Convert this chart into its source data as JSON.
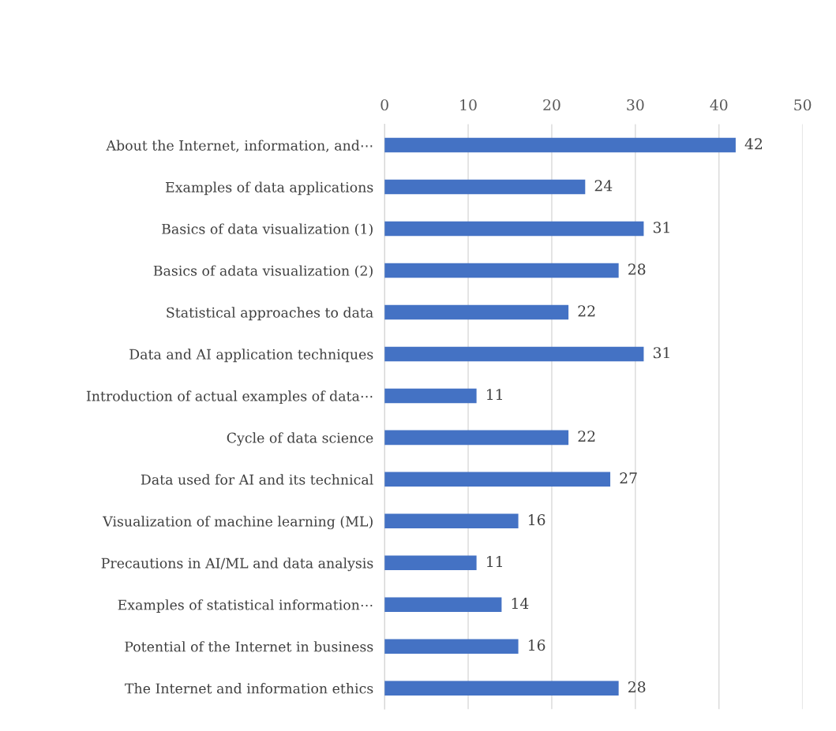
{
  "chart_data": {
    "type": "bar",
    "orientation": "horizontal",
    "categories": [
      "About the Internet, information, and⋯",
      "Examples of data applications",
      "Basics of data visualization (1)",
      "Basics of adata visualization (2)",
      "Statistical approaches to data",
      "Data and AI application techniques",
      "Introduction of actual examples of data⋯",
      "Cycle of data science",
      "Data used for AI and its technical",
      "Visualization of machine learning (ML)",
      "Precautions in AI/ML and data analysis",
      "Examples of statistical information⋯",
      "Potential of the Internet in business",
      "The Internet and information ethics"
    ],
    "values": [
      42,
      24,
      31,
      28,
      22,
      31,
      11,
      22,
      27,
      16,
      11,
      14,
      16,
      28
    ],
    "color": "#4472c4",
    "xlim": [
      0,
      50
    ],
    "xticks": [
      0,
      10,
      20,
      30,
      40,
      50
    ],
    "grid": "x",
    "data_labels": true
  }
}
